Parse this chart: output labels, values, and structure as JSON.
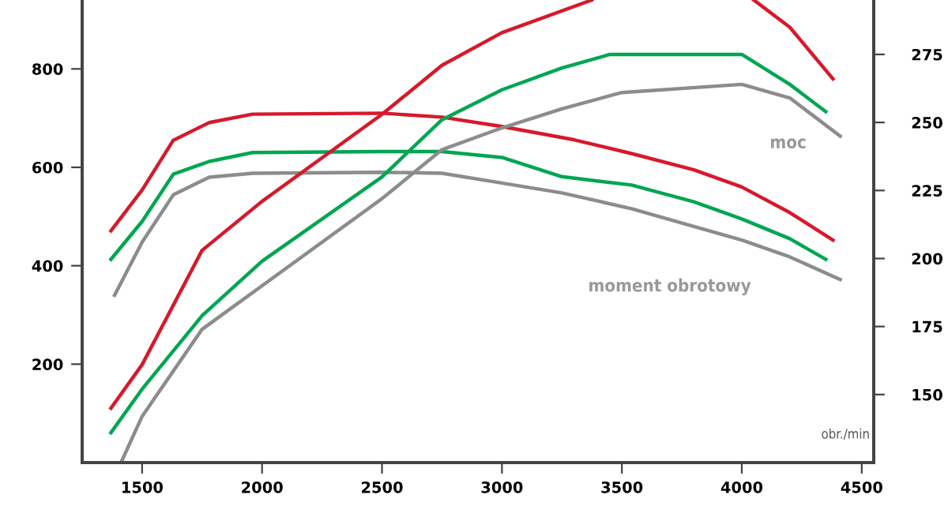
{
  "chart_data": {
    "type": "line",
    "xlim": [
      1250,
      4550
    ],
    "xticks": [
      1500,
      2000,
      2500,
      3000,
      3500,
      4000,
      4500
    ],
    "ylim": [
      0,
      940
    ],
    "yticks": [
      200,
      400,
      600,
      800
    ],
    "y2lim": [
      125,
      295
    ],
    "y2ticks": [
      150,
      175,
      200,
      225,
      250,
      275
    ],
    "grid": false,
    "marker": "none",
    "line_style": "solid",
    "annotations": [
      "moc",
      "moment obrotowy",
      "obr./min"
    ],
    "series": [
      {
        "color": "#d7192b",
        "x": [
          1370,
          1500,
          1630,
          1780,
          1960,
          2500,
          2750,
          3000,
          3300,
          3540,
          3800,
          4000,
          4200,
          4380
        ],
        "values": [
          471,
          554,
          655,
          691,
          708,
          710,
          702,
          683,
          656,
          628,
          595,
          560,
          508,
          452
        ]
      },
      {
        "color": "#00a651",
        "x": [
          1370,
          1500,
          1630,
          1780,
          1960,
          2500,
          2750,
          3000,
          3250,
          3540,
          3800,
          4000,
          4200,
          4350
        ],
        "values": [
          413,
          490,
          586,
          612,
          630,
          632,
          632,
          620,
          581,
          564,
          530,
          495,
          455,
          413
        ]
      },
      {
        "color": "#8c8c8c",
        "x": [
          1385,
          1500,
          1630,
          1780,
          1960,
          2500,
          2750,
          3000,
          3250,
          3540,
          3800,
          4000,
          4200,
          4410
        ],
        "values": [
          340,
          448,
          544,
          580,
          588,
          590,
          588,
          568,
          548,
          516,
          480,
          452,
          418,
          372
        ]
      },
      {
        "color": "#d7192b",
        "axis": "y2",
        "x": [
          1370,
          1500,
          1750,
          2000,
          2500,
          2750,
          3000,
          3375,
          3700,
          4050,
          4200,
          4380
        ],
        "values": [
          145,
          161,
          203,
          221,
          253,
          271,
          283,
          295,
          null,
          295,
          285,
          266
        ]
      },
      {
        "color": "#00a651",
        "axis": "y2",
        "x": [
          1370,
          1500,
          1750,
          2000,
          2500,
          2750,
          3000,
          3250,
          3450,
          4000,
          4200,
          4350
        ],
        "values": [
          136,
          152,
          179,
          199,
          230,
          251,
          262,
          270,
          275,
          275,
          264,
          254
        ]
      },
      {
        "color": "#8c8c8c",
        "axis": "y2",
        "x": [
          1412,
          1500,
          1750,
          2000,
          2500,
          2750,
          3000,
          3250,
          3500,
          4000,
          4200,
          4410
        ],
        "values": [
          125,
          142,
          174,
          190,
          222,
          240,
          248,
          255,
          261,
          264,
          259,
          245
        ]
      }
    ]
  }
}
